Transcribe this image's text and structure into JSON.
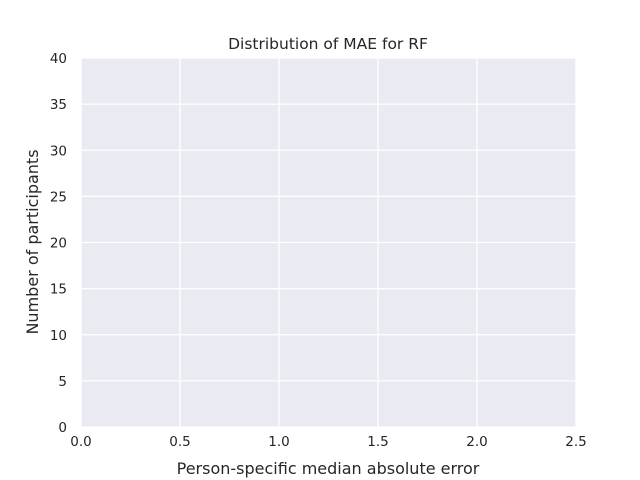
{
  "chart_data": {
    "type": "bar",
    "title": "Distribution of MAE for RF",
    "xlabel": "Person-specific median absolute error",
    "ylabel": "Number of participants",
    "xlim": [
      0.0,
      2.5
    ],
    "ylim": [
      0,
      40
    ],
    "x_ticks": [
      "0.0",
      "0.5",
      "1.0",
      "1.5",
      "2.0",
      "2.5"
    ],
    "y_ticks": [
      "0",
      "5",
      "10",
      "15",
      "20",
      "25",
      "30",
      "35",
      "40"
    ],
    "series": [],
    "grid": true,
    "legend": "none",
    "colors": {
      "plot_background": "#EAEAF2",
      "grid": "#FFFFFF",
      "text": "#262626"
    }
  }
}
